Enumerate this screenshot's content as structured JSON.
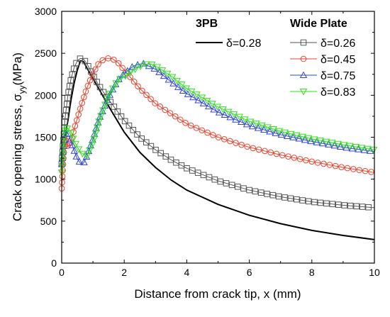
{
  "chart_data": {
    "type": "line",
    "xlabel": "Distance from crack tip, x (mm)",
    "ylabel_main": "Crack opening stress, σ",
    "ylabel_sub": "yy",
    "ylabel_tail": "(MPa)",
    "xlim": [
      0,
      10
    ],
    "ylim": [
      0,
      3000
    ],
    "x_ticks": [
      "0",
      "2",
      "4",
      "6",
      "8",
      "10"
    ],
    "y_ticks": [
      "0",
      "500",
      "1000",
      "1500",
      "2000",
      "2500",
      "3000"
    ],
    "legend_groups": [
      "3PB",
      "Wide Plate"
    ],
    "series": [
      {
        "name": "δ=0.28",
        "group": "3PB",
        "color": "#000000",
        "marker": "none",
        "x": [
          0,
          0.1,
          0.2,
          0.3,
          0.4,
          0.5,
          0.6,
          0.7,
          0.8,
          1.0,
          1.2,
          1.5,
          2.0,
          2.5,
          3.0,
          3.5,
          4.0,
          5.0,
          6.0,
          7.0,
          8.0,
          9.0,
          10.0
        ],
        "y": [
          1200,
          1500,
          1700,
          1950,
          2150,
          2300,
          2410,
          2400,
          2330,
          2200,
          2070,
          1870,
          1560,
          1320,
          1140,
          990,
          870,
          700,
          570,
          470,
          390,
          330,
          280
        ]
      },
      {
        "name": "δ=0.26",
        "group": "Wide Plate",
        "color": "#555555",
        "marker": "square",
        "x": [
          0,
          0.1,
          0.2,
          0.3,
          0.4,
          0.5,
          0.6,
          0.7,
          0.8,
          1.0,
          1.2,
          1.5,
          2.0,
          2.5,
          3.0,
          3.5,
          4.0,
          5.0,
          6.0,
          7.0,
          8.0,
          9.0,
          10.0
        ],
        "y": [
          1180,
          1700,
          2000,
          2200,
          2330,
          2410,
          2440,
          2430,
          2380,
          2240,
          2110,
          1950,
          1700,
          1500,
          1350,
          1230,
          1130,
          980,
          870,
          790,
          730,
          690,
          660
        ]
      },
      {
        "name": "δ=0.45",
        "group": "Wide Plate",
        "color": "#e8432e",
        "marker": "circle",
        "x": [
          0,
          0.1,
          0.2,
          0.3,
          0.4,
          0.6,
          0.8,
          1.0,
          1.2,
          1.4,
          1.6,
          1.8,
          2.0,
          2.5,
          3.0,
          4.0,
          5.0,
          6.0,
          7.0,
          8.0,
          9.0,
          10.0
        ],
        "y": [
          890,
          1500,
          1380,
          1450,
          1600,
          1850,
          2080,
          2260,
          2390,
          2440,
          2440,
          2390,
          2300,
          2080,
          1900,
          1660,
          1500,
          1380,
          1290,
          1210,
          1140,
          1080
        ]
      },
      {
        "name": "δ=0.75",
        "group": "Wide Plate",
        "color": "#3344dd",
        "marker": "triangle-up",
        "x": [
          0,
          0.1,
          0.2,
          0.3,
          0.4,
          0.5,
          0.6,
          0.7,
          0.8,
          1.0,
          1.2,
          1.5,
          1.8,
          2.0,
          2.3,
          2.6,
          3.0,
          3.5,
          4.0,
          5.0,
          6.0,
          7.0,
          8.0,
          9.0,
          10.0
        ],
        "y": [
          1180,
          1560,
          1550,
          1450,
          1340,
          1240,
          1190,
          1190,
          1270,
          1480,
          1720,
          1980,
          2180,
          2260,
          2350,
          2380,
          2310,
          2160,
          2020,
          1800,
          1640,
          1530,
          1450,
          1380,
          1330
        ]
      },
      {
        "name": "δ=0.83",
        "group": "Wide Plate",
        "color": "#33dd22",
        "marker": "triangle-down",
        "x": [
          0,
          0.1,
          0.2,
          0.3,
          0.4,
          0.6,
          0.8,
          1.0,
          1.2,
          1.5,
          1.8,
          2.0,
          2.3,
          2.6,
          2.8,
          3.0,
          3.5,
          4.0,
          5.0,
          6.0,
          7.0,
          8.0,
          9.0,
          10.0
        ],
        "y": [
          1080,
          1620,
          1600,
          1560,
          1450,
          1320,
          1270,
          1430,
          1700,
          2000,
          2180,
          2220,
          2300,
          2360,
          2380,
          2350,
          2230,
          2080,
          1860,
          1690,
          1570,
          1480,
          1410,
          1350
        ]
      }
    ]
  }
}
